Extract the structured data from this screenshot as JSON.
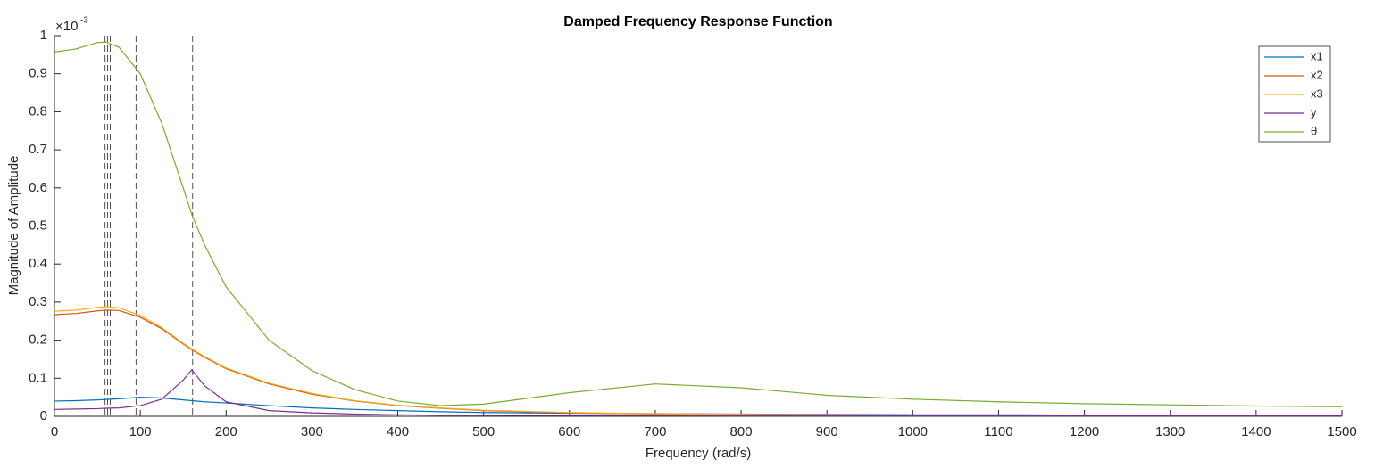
{
  "chart_data": {
    "type": "line",
    "title": "Damped Frequency Response Function",
    "xlabel": "Frequency (rad/s)",
    "ylabel": "Magnitude of Amplitude",
    "y_multiplier": "×10",
    "y_multiplier_exp": "-3",
    "x": [
      0,
      25,
      50,
      60,
      75,
      100,
      125,
      150,
      160,
      175,
      200,
      250,
      300,
      350,
      400,
      450,
      500,
      600,
      700,
      800,
      900,
      1000,
      1100,
      1200,
      1300,
      1400,
      1500
    ],
    "series": [
      {
        "name": "x1",
        "color": "#0072BD",
        "values": [
          0.04,
          0.041,
          0.043,
          0.044,
          0.046,
          0.05,
          0.048,
          0.043,
          0.041,
          0.038,
          0.035,
          0.028,
          0.022,
          0.018,
          0.015,
          0.012,
          0.01,
          0.008,
          0.007,
          0.006,
          0.005,
          0.004,
          0.004,
          0.003,
          0.003,
          0.003,
          0.003
        ]
      },
      {
        "name": "x2",
        "color": "#D95319",
        "values": [
          0.267,
          0.27,
          0.277,
          0.279,
          0.278,
          0.26,
          0.23,
          0.19,
          0.175,
          0.155,
          0.125,
          0.085,
          0.058,
          0.04,
          0.028,
          0.021,
          0.015,
          0.009,
          0.006,
          0.005,
          0.004,
          0.003,
          0.003,
          0.002,
          0.002,
          0.002,
          0.002
        ]
      },
      {
        "name": "x3",
        "color": "#EDB120",
        "values": [
          0.276,
          0.279,
          0.286,
          0.288,
          0.285,
          0.265,
          0.233,
          0.192,
          0.177,
          0.157,
          0.127,
          0.087,
          0.06,
          0.041,
          0.029,
          0.022,
          0.016,
          0.01,
          0.007,
          0.005,
          0.004,
          0.003,
          0.003,
          0.003,
          0.002,
          0.002,
          0.002
        ]
      },
      {
        "name": "y",
        "color": "#7E2F8E",
        "values": [
          0.018,
          0.019,
          0.02,
          0.021,
          0.022,
          0.028,
          0.045,
          0.095,
          0.122,
          0.08,
          0.038,
          0.015,
          0.009,
          0.006,
          0.004,
          0.003,
          0.003,
          0.002,
          0.002,
          0.001,
          0.001,
          0.001,
          0.001,
          0.001,
          0.001,
          0.001,
          0.001
        ]
      },
      {
        "name": "θ",
        "color": "#77AC30",
        "values": [
          0.957,
          0.965,
          0.982,
          0.983,
          0.97,
          0.9,
          0.77,
          0.6,
          0.53,
          0.45,
          0.34,
          0.2,
          0.12,
          0.07,
          0.04,
          0.028,
          0.032,
          0.062,
          0.085,
          0.075,
          0.055,
          0.045,
          0.038,
          0.033,
          0.03,
          0.027,
          0.025
        ]
      }
    ],
    "vlines": [
      59,
      62,
      65,
      95,
      161
    ],
    "xlim": [
      0,
      1500
    ],
    "xticks": [
      0,
      100,
      200,
      300,
      400,
      500,
      600,
      700,
      800,
      900,
      1000,
      1100,
      1200,
      1300,
      1400,
      1500
    ],
    "ylim": [
      0,
      1
    ],
    "yticks": [
      0,
      0.1,
      0.2,
      0.3,
      0.4,
      0.5,
      0.6,
      0.7,
      0.8,
      0.9,
      1
    ],
    "grid": false,
    "legend": "top-right"
  }
}
